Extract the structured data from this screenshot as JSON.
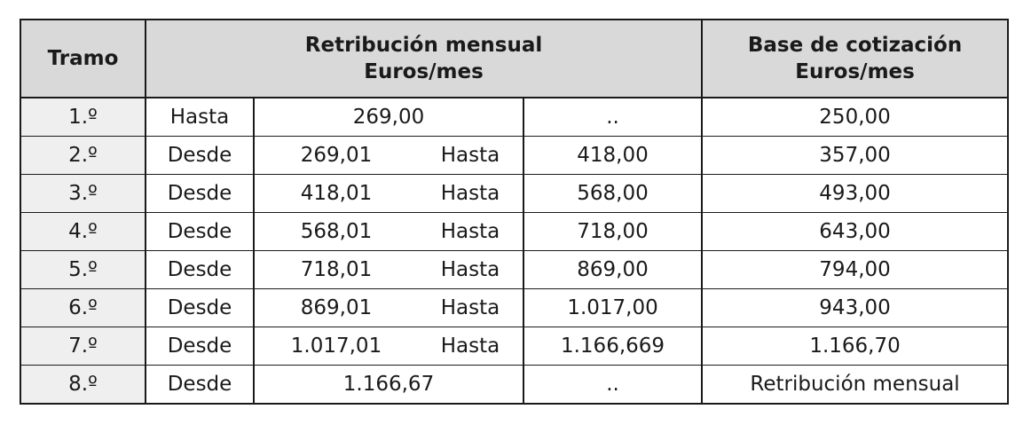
{
  "header": {
    "tramo": "Tramo",
    "retribucion_line1": "Retribución mensual",
    "retribucion_line2": "Euros/mes",
    "base_line1": "Base de cotización",
    "base_line2": "Euros/mes"
  },
  "rows": [
    {
      "tramo": "1.º",
      "desde_label": "Hasta",
      "desde_value": "269,00",
      "hasta_label": "",
      "hasta_value": "..",
      "base": "250,00"
    },
    {
      "tramo": "2.º",
      "desde_label": "Desde",
      "desde_value": "269,01",
      "hasta_label": "Hasta",
      "hasta_value": "418,00",
      "base": "357,00"
    },
    {
      "tramo": "3.º",
      "desde_label": "Desde",
      "desde_value": "418,01",
      "hasta_label": "Hasta",
      "hasta_value": "568,00",
      "base": "493,00"
    },
    {
      "tramo": "4.º",
      "desde_label": "Desde",
      "desde_value": "568,01",
      "hasta_label": "Hasta",
      "hasta_value": "718,00",
      "base": "643,00"
    },
    {
      "tramo": "5.º",
      "desde_label": "Desde",
      "desde_value": "718,01",
      "hasta_label": "Hasta",
      "hasta_value": "869,00",
      "base": "794,00"
    },
    {
      "tramo": "6.º",
      "desde_label": "Desde",
      "desde_value": "869,01",
      "hasta_label": "Hasta",
      "hasta_value": "1.017,00",
      "base": "943,00"
    },
    {
      "tramo": "7.º",
      "desde_label": "Desde",
      "desde_value": "1.017,01",
      "hasta_label": "Hasta",
      "hasta_value": "1.166,669",
      "base": "1.166,70"
    },
    {
      "tramo": "8.º",
      "desde_label": "Desde",
      "desde_value": "1.166,67",
      "hasta_label": "",
      "hasta_value": "..",
      "base": "Retribución mensual"
    }
  ]
}
